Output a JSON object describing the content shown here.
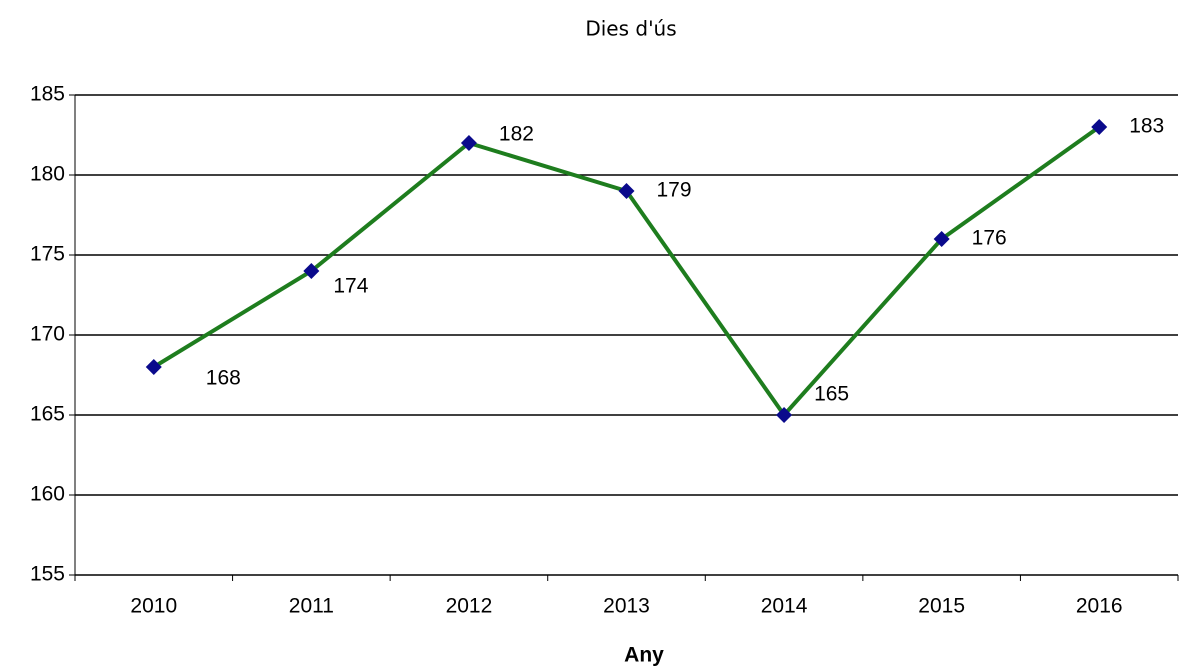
{
  "chart_data": {
    "type": "line",
    "title": "Dies d'ús",
    "x_label": "Any",
    "categories": [
      "2010",
      "2011",
      "2012",
      "2013",
      "2014",
      "2015",
      "2016"
    ],
    "series": [
      {
        "name": "Dies d'ús",
        "color": "#1e7d1e",
        "marker_color": "#0a0a8c",
        "values": [
          168,
          174,
          182,
          179,
          165,
          176,
          183
        ]
      }
    ],
    "ylim": [
      155,
      185
    ],
    "yticks": [
      155,
      160,
      165,
      170,
      175,
      180,
      185
    ],
    "grid": true
  }
}
